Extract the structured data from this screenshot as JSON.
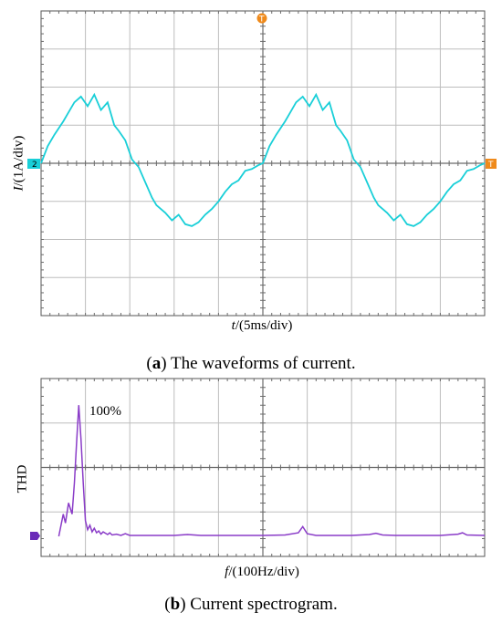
{
  "chart_data": [
    {
      "type": "line",
      "caption_letter": "a",
      "caption_text": "The waveforms of current.",
      "xlabel_var": "t",
      "xlabel_unit": "/(5ms/div)",
      "ylabel_var": "I",
      "ylabel_unit": "/(1A/div)",
      "x_unit": "div",
      "y_unit": "div",
      "x_divisions": 10,
      "y_divisions": 8,
      "grid": true,
      "channel_marker": "2",
      "trigger_marker_top": "T",
      "trigger_marker_right": "T",
      "line_color": "#19cfd8",
      "series": [
        {
          "x": [
            0,
            0.15,
            0.3,
            0.5,
            0.6,
            0.75,
            0.9,
            1.05,
            1.2,
            1.35,
            1.5,
            1.65,
            1.75,
            1.9,
            2.05,
            2.2,
            2.35,
            2.5,
            2.6,
            2.8,
            2.95,
            3.1,
            3.25,
            3.4,
            3.55,
            3.7,
            3.85,
            4.0,
            4.15,
            4.3,
            4.45,
            4.6,
            4.75,
            4.9,
            5.0
          ],
          "y": [
            0,
            0.45,
            0.75,
            1.1,
            1.3,
            1.6,
            1.75,
            1.5,
            1.8,
            1.4,
            1.6,
            1.0,
            0.85,
            0.6,
            0.1,
            -0.1,
            -0.5,
            -0.9,
            -1.1,
            -1.3,
            -1.5,
            -1.35,
            -1.6,
            -1.65,
            -1.55,
            -1.35,
            -1.2,
            -1.0,
            -0.75,
            -0.55,
            -0.45,
            -0.2,
            -0.15,
            -0.05,
            0
          ]
        }
      ]
    },
    {
      "type": "line",
      "caption_letter": "b",
      "caption_text": "Current spectrogram.",
      "xlabel_var": "f",
      "xlabel_unit": "/(100Hz/div)",
      "ylabel": "THD",
      "annotation": "100%",
      "x_unit": "div",
      "y_unit": "div",
      "x_divisions": 10,
      "y_divisions": 4,
      "grid": true,
      "line_color": "#8a3cc8",
      "series": [
        {
          "x": [
            0.4,
            0.5,
            0.55,
            0.62,
            0.7,
            0.75,
            0.8,
            0.85,
            0.9,
            0.95,
            1.0,
            1.05,
            1.1,
            1.15,
            1.2,
            1.25,
            1.3,
            1.35,
            1.4,
            1.5,
            1.55,
            1.6,
            1.7,
            1.8,
            1.9,
            2.0,
            2.3,
            3.0,
            3.3,
            3.45,
            3.6,
            4.0,
            5.0,
            5.5,
            5.8,
            5.9,
            6.0,
            6.2,
            6.5,
            7.0,
            7.4,
            7.55,
            7.7,
            8.0,
            9.0,
            9.4,
            9.5,
            9.6,
            10.0
          ],
          "y": [
            0,
            0.5,
            0.3,
            0.75,
            0.5,
            1.2,
            2.1,
            2.95,
            2.2,
            1.2,
            0.35,
            0.15,
            0.25,
            0.1,
            0.18,
            0.08,
            0.12,
            0.05,
            0.1,
            0.04,
            0.08,
            0.03,
            0.05,
            0.02,
            0.06,
            0.02,
            0.02,
            0.02,
            0.04,
            0.03,
            0.02,
            0.02,
            0.02,
            0.03,
            0.08,
            0.22,
            0.06,
            0.02,
            0.02,
            0.02,
            0.04,
            0.07,
            0.03,
            0.02,
            0.02,
            0.05,
            0.08,
            0.03,
            0.02
          ]
        }
      ]
    }
  ]
}
